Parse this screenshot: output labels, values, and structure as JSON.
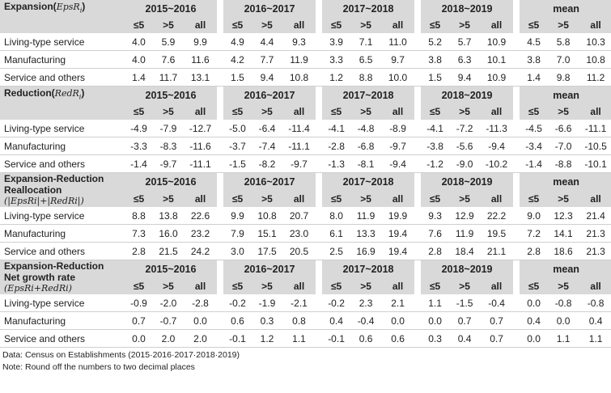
{
  "periods": [
    "2015~2016",
    "2016~2017",
    "2017~2018",
    "2018~2019",
    "mean"
  ],
  "sub_headers": [
    "≤5",
    ">5",
    "all"
  ],
  "sections": [
    {
      "title": "Expansion(",
      "formula": "EpsR",
      "formula_sub": "i",
      "formula_end": ")",
      "rows": [
        {
          "label": "Living-type service",
          "values": [
            "4.0",
            "5.9",
            "9.9",
            "4.9",
            "4.4",
            "9.3",
            "3.9",
            "7.1",
            "11.0",
            "5.2",
            "5.7",
            "10.9",
            "4.5",
            "5.8",
            "10.3"
          ]
        },
        {
          "label": "Manufacturing",
          "values": [
            "4.0",
            "7.6",
            "11.6",
            "4.2",
            "7.7",
            "11.9",
            "3.3",
            "6.5",
            "9.7",
            "3.8",
            "6.3",
            "10.1",
            "3.8",
            "7.0",
            "10.8"
          ]
        },
        {
          "label": "Service and others",
          "values": [
            "1.4",
            "11.7",
            "13.1",
            "1.5",
            "9.4",
            "10.8",
            "1.2",
            "8.8",
            "10.0",
            "1.5",
            "9.4",
            "10.9",
            "1.4",
            "9.8",
            "11.2"
          ]
        }
      ]
    },
    {
      "title": "Reduction(",
      "formula": "RedR",
      "formula_sub": "i",
      "formula_end": ")",
      "rows": [
        {
          "label": "Living-type service",
          "values": [
            "-4.9",
            "-7.9",
            "-12.7",
            "-5.0",
            "-6.4",
            "-11.4",
            "-4.1",
            "-4.8",
            "-8.9",
            "-4.1",
            "-7.2",
            "-11.3",
            "-4.5",
            "-6.6",
            "-11.1"
          ]
        },
        {
          "label": "Manufacturing",
          "values": [
            "-3.3",
            "-8.3",
            "-11.6",
            "-3.7",
            "-7.4",
            "-11.1",
            "-2.8",
            "-6.8",
            "-9.7",
            "-3.8",
            "-5.6",
            "-9.4",
            "-3.4",
            "-7.0",
            "-10.5"
          ]
        },
        {
          "label": "Service and others",
          "values": [
            "-1.4",
            "-9.7",
            "-11.1",
            "-1.5",
            "-8.2",
            "-9.7",
            "-1.3",
            "-8.1",
            "-9.4",
            "-1.2",
            "-9.0",
            "-10.2",
            "-1.4",
            "-8.8",
            "-10.1"
          ]
        }
      ]
    },
    {
      "title_line1": "Expansion-Reduction",
      "title_line2": "Reallocation",
      "formula_line": "(|EpsRi|+|RedRi|)",
      "rows": [
        {
          "label": "Living-type service",
          "values": [
            "8.8",
            "13.8",
            "22.6",
            "9.9",
            "10.8",
            "20.7",
            "8.0",
            "11.9",
            "19.9",
            "9.3",
            "12.9",
            "22.2",
            "9.0",
            "12.3",
            "21.4"
          ]
        },
        {
          "label": "Manufacturing",
          "values": [
            "7.3",
            "16.0",
            "23.2",
            "7.9",
            "15.1",
            "23.0",
            "6.1",
            "13.3",
            "19.4",
            "7.6",
            "11.9",
            "19.5",
            "7.2",
            "14.1",
            "21.3"
          ]
        },
        {
          "label": "Service and others",
          "values": [
            "2.8",
            "21.5",
            "24.2",
            "3.0",
            "17.5",
            "20.5",
            "2.5",
            "16.9",
            "19.4",
            "2.8",
            "18.4",
            "21.1",
            "2.8",
            "18.6",
            "21.3"
          ]
        }
      ]
    },
    {
      "title_line1": "Expansion-Reduction",
      "title_line2": "Net growth rate",
      "formula_line": "(EpsRi+RedRi)",
      "rows": [
        {
          "label": "Living-type service",
          "values": [
            "-0.9",
            "-2.0",
            "-2.8",
            "-0.2",
            "-1.9",
            "-2.1",
            "-0.2",
            "2.3",
            "2.1",
            "1.1",
            "-1.5",
            "-0.4",
            "0.0",
            "-0.8",
            "-0.8"
          ]
        },
        {
          "label": "Manufacturing",
          "values": [
            "0.7",
            "-0.7",
            "0.0",
            "0.6",
            "0.3",
            "0.8",
            "0.4",
            "-0.4",
            "0.0",
            "0.0",
            "0.7",
            "0.7",
            "0.4",
            "0.0",
            "0.4"
          ]
        },
        {
          "label": "Service and others",
          "values": [
            "0.0",
            "2.0",
            "2.0",
            "-0.1",
            "1.2",
            "1.1",
            "-0.1",
            "0.6",
            "0.6",
            "0.3",
            "0.4",
            "0.7",
            "0.0",
            "1.1",
            "1.1"
          ]
        }
      ]
    }
  ],
  "notes": {
    "data": "Data: Census on Establishments (2015·2016·2017·2018·2019)",
    "note": "Note: Round off the numbers to two decimal places"
  }
}
